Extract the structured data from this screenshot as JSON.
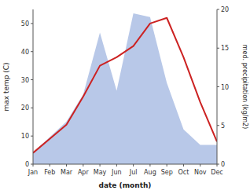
{
  "chart_data": {
    "type": "line",
    "categories": [
      "Jan",
      "Feb",
      "Mar",
      "Apr",
      "May",
      "Jun",
      "Jul",
      "Aug",
      "Sep",
      "Oct",
      "Nov",
      "Dec"
    ],
    "series": [
      {
        "type": "area",
        "axis": "y2",
        "color": "#b8c8e8",
        "values": [
          1.5,
          3.5,
          5.5,
          9.0,
          17.0,
          9.5,
          19.5,
          19.0,
          10.5,
          4.5,
          2.5,
          2.5
        ]
      },
      {
        "type": "line",
        "color": "#cc2222",
        "values": [
          4,
          9,
          14,
          24,
          35,
          38,
          42,
          50,
          52,
          38,
          22,
          8
        ]
      }
    ],
    "xlabel": "date (month)",
    "ylabel": "max temp (C)",
    "y2label": "med. precipitation (kg/m2)",
    "ylim": [
      0,
      55
    ],
    "yticks": [
      0,
      10,
      20,
      30,
      40,
      50
    ],
    "y2lim": [
      0,
      20
    ],
    "y2ticks": [
      0,
      5,
      10,
      15,
      20
    ],
    "grid": false
  }
}
